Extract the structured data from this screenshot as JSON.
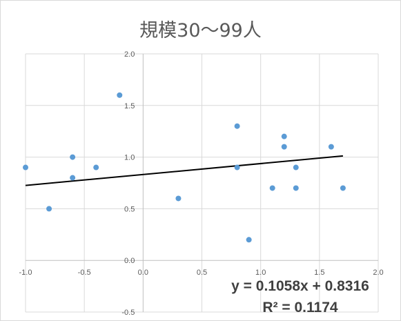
{
  "chart_data": {
    "type": "scatter",
    "title": "規模30〜99人",
    "xlabel": "",
    "ylabel": "",
    "xlim": [
      -1.0,
      2.0
    ],
    "ylim": [
      -0.5,
      2.0
    ],
    "x_ticks": [
      "-1.0",
      "-0.5",
      "0.0",
      "0.5",
      "1.0",
      "1.5",
      "2.0"
    ],
    "y_ticks": [
      "-0.5",
      "0.0",
      "0.5",
      "1.0",
      "1.5",
      "2.0"
    ],
    "grid": true,
    "legend": "none",
    "marker_color": "#5b9bd5",
    "trendline_color": "#000000",
    "points": [
      {
        "x": -1.0,
        "y": 0.9
      },
      {
        "x": -0.8,
        "y": 0.5
      },
      {
        "x": -0.6,
        "y": 1.0
      },
      {
        "x": -0.6,
        "y": 0.8
      },
      {
        "x": -0.4,
        "y": 0.9
      },
      {
        "x": -0.2,
        "y": 1.6
      },
      {
        "x": 0.3,
        "y": 0.6
      },
      {
        "x": 0.8,
        "y": 1.3
      },
      {
        "x": 0.8,
        "y": 0.9
      },
      {
        "x": 0.9,
        "y": 0.2
      },
      {
        "x": 1.1,
        "y": 0.7
      },
      {
        "x": 1.2,
        "y": 1.2
      },
      {
        "x": 1.2,
        "y": 1.1
      },
      {
        "x": 1.3,
        "y": 0.9
      },
      {
        "x": 1.3,
        "y": 0.7
      },
      {
        "x": 1.6,
        "y": 1.1
      },
      {
        "x": 1.7,
        "y": 0.7
      }
    ],
    "trendline": {
      "slope": 0.1058,
      "intercept": 0.8316,
      "x_range": [
        -1.0,
        1.7
      ],
      "equation": "y = 0.1058x + 0.8316",
      "r_squared": "R² = 0.1174"
    }
  }
}
